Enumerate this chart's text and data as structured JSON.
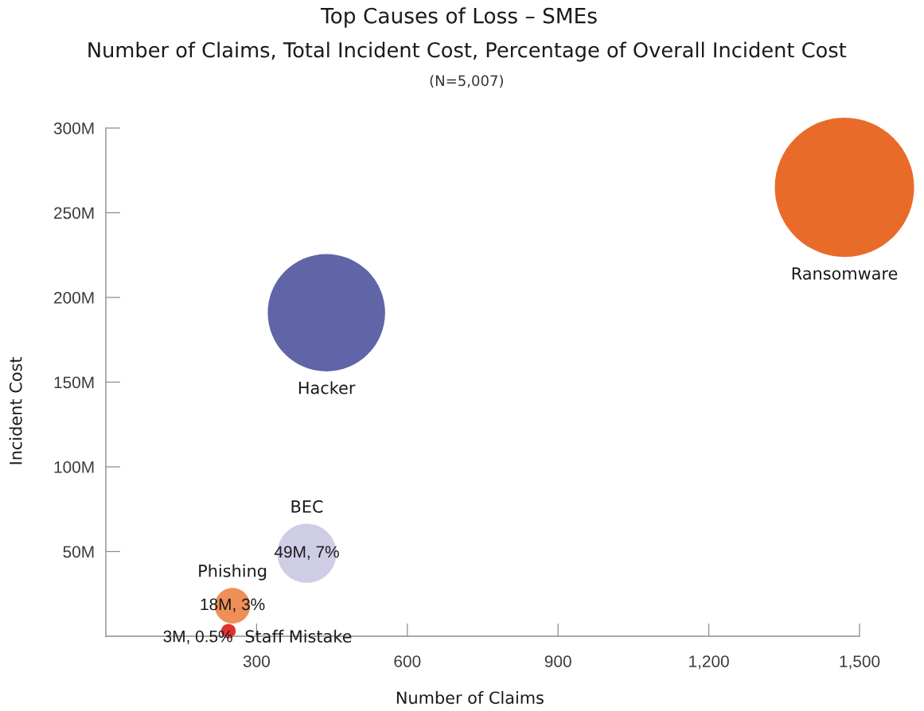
{
  "chart_data": {
    "type": "bubble",
    "title": "Top Causes of Loss – SMEs",
    "subtitle": "Number of Claims, Total Incident Cost, Percentage of Overall Incident Cost",
    "annotations": [
      "(N=5,007)"
    ],
    "xlabel": "Number of Claims",
    "ylabel": "Incident Cost",
    "xlim": [
      0,
      1500
    ],
    "xticks": [
      300,
      600,
      900,
      {
        "value": 1200,
        "label": "1,200"
      },
      {
        "value": 1500,
        "label": "1,500"
      }
    ],
    "ylim": [
      0,
      300
    ],
    "yticks": [
      {
        "value": 50,
        "label": "50M"
      },
      {
        "value": 100,
        "label": "100M"
      },
      {
        "value": 150,
        "label": "150M"
      },
      {
        "value": 200,
        "label": "200M"
      },
      {
        "value": 250,
        "label": "250M"
      },
      {
        "value": 300,
        "label": "300M"
      }
    ],
    "series": [
      {
        "name": "Ransomware",
        "color": "#e96b2a",
        "x": [
          1470
        ],
        "values": [
          265
        ],
        "sizes": [
          1
        ]
      },
      {
        "name": "Hacker",
        "color": "#5f65a6",
        "x": [
          439
        ],
        "values": [
          191
        ],
        "sizes": [
          0.71
        ]
      },
      {
        "name": "BEC",
        "color": "#cfcde6",
        "x": [
          400
        ],
        "values": [
          49
        ],
        "sizes": [
          0.18
        ],
        "value_labels": [
          "49M, 7%"
        ]
      },
      {
        "name": "Phishing",
        "color": "#ef8f58",
        "x": [
          252
        ],
        "values": [
          18
        ],
        "sizes": [
          0.065
        ],
        "value_labels": [
          "18M, 3%"
        ]
      },
      {
        "name": "Staff Mistake",
        "color": "#e2312a",
        "x": [
          244
        ],
        "values": [
          3
        ],
        "sizes": [
          0.011
        ],
        "value_labels": [
          "3M, 0.5%"
        ]
      }
    ]
  }
}
